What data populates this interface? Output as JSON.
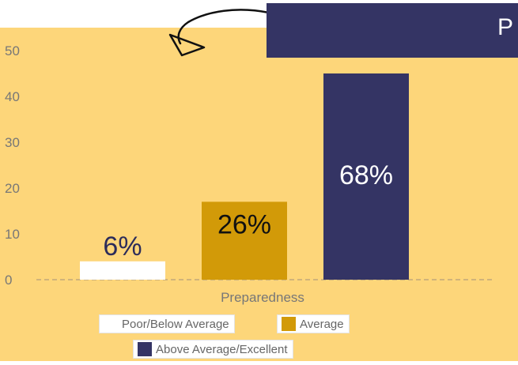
{
  "colors": {
    "background": "#fdd67a",
    "banner": "#343464",
    "poor": "#ffffff",
    "average": "#d29a08",
    "excellent": "#343464",
    "axis_text": "#777777"
  },
  "banner": {
    "text": "P"
  },
  "decoration": {
    "icon": "curved-arrow-icon"
  },
  "chart_data": {
    "type": "bar",
    "categories": [
      "Preparedness"
    ],
    "xlabel": "Preparedness",
    "ylim": [
      0,
      50
    ],
    "yticks": [
      0,
      10,
      20,
      30,
      40,
      50
    ],
    "grid": false,
    "baseline": "dashed",
    "legend_position": "bottom",
    "series": [
      {
        "name": "Poor/Below Average",
        "values": [
          4
        ],
        "label": "6%"
      },
      {
        "name": "Average",
        "values": [
          17
        ],
        "label": "26%"
      },
      {
        "name": "Above Average/Excellent",
        "values": [
          45
        ],
        "label": "68%"
      }
    ]
  }
}
